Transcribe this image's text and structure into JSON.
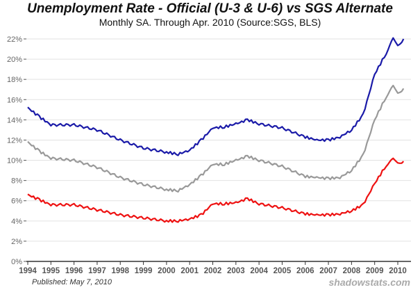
{
  "chart_data": {
    "type": "line",
    "title": "Unemployment Rate - Official (U-3 & U-6) vs SGS Alternate",
    "subtitle": "Monthly SA. Through Apr. 2010  (Source:SGS, BLS)",
    "xlabel": "",
    "ylabel": "",
    "xlim": [
      1994,
      2010.3
    ],
    "ylim": [
      0,
      22
    ],
    "grid": true,
    "y_ticks": [
      "0%",
      "2%",
      "4%",
      "6%",
      "8%",
      "10%",
      "12%",
      "14%",
      "16%",
      "18%",
      "20%",
      "22%"
    ],
    "x_ticks": [
      "1994",
      "1995",
      "1996",
      "1997",
      "1998",
      "1999",
      "2000",
      "2001",
      "2002",
      "2003",
      "2004",
      "2005",
      "2006",
      "2007",
      "2008",
      "2009",
      "2010"
    ],
    "x": [
      1994,
      1994.5,
      1995,
      1996,
      1997,
      1998,
      1999,
      2000,
      2000.5,
      2001,
      2001.5,
      2002,
      2002.5,
      2003,
      2003.5,
      2004,
      2005,
      2006,
      2006.5,
      2007,
      2007.5,
      2008,
      2008.5,
      2009,
      2009.5,
      2009.8,
      2010,
      2010.25
    ],
    "series": [
      {
        "name": "SGS Alternate",
        "color": "#1a1aa8",
        "values": [
          15.2,
          14.3,
          13.5,
          13.5,
          13.0,
          12.0,
          11.2,
          10.8,
          10.6,
          11.0,
          12.0,
          13.2,
          13.3,
          13.6,
          14.0,
          13.6,
          13.2,
          12.3,
          12.0,
          12.0,
          12.3,
          13.0,
          14.5,
          18.5,
          20.6,
          22.0,
          21.3,
          22.0
        ]
      },
      {
        "name": "U-6",
        "color": "#999999",
        "values": [
          11.8,
          10.9,
          10.2,
          10.0,
          9.3,
          8.3,
          7.6,
          7.1,
          7.0,
          7.6,
          8.5,
          9.6,
          9.6,
          10.0,
          10.4,
          10.0,
          9.4,
          8.4,
          8.3,
          8.2,
          8.3,
          9.0,
          10.5,
          14.0,
          16.3,
          17.3,
          16.6,
          17.1
        ]
      },
      {
        "name": "U-3",
        "color": "#ee1111",
        "values": [
          6.6,
          6.1,
          5.6,
          5.6,
          5.1,
          4.6,
          4.3,
          4.0,
          4.0,
          4.2,
          4.6,
          5.7,
          5.7,
          5.8,
          6.2,
          5.7,
          5.3,
          4.7,
          4.6,
          4.6,
          4.7,
          5.0,
          5.6,
          7.7,
          9.5,
          10.1,
          9.7,
          9.9
        ]
      }
    ]
  },
  "footer": {
    "published": "Published: May 7, 2010",
    "brand": "shadowstats.com"
  }
}
